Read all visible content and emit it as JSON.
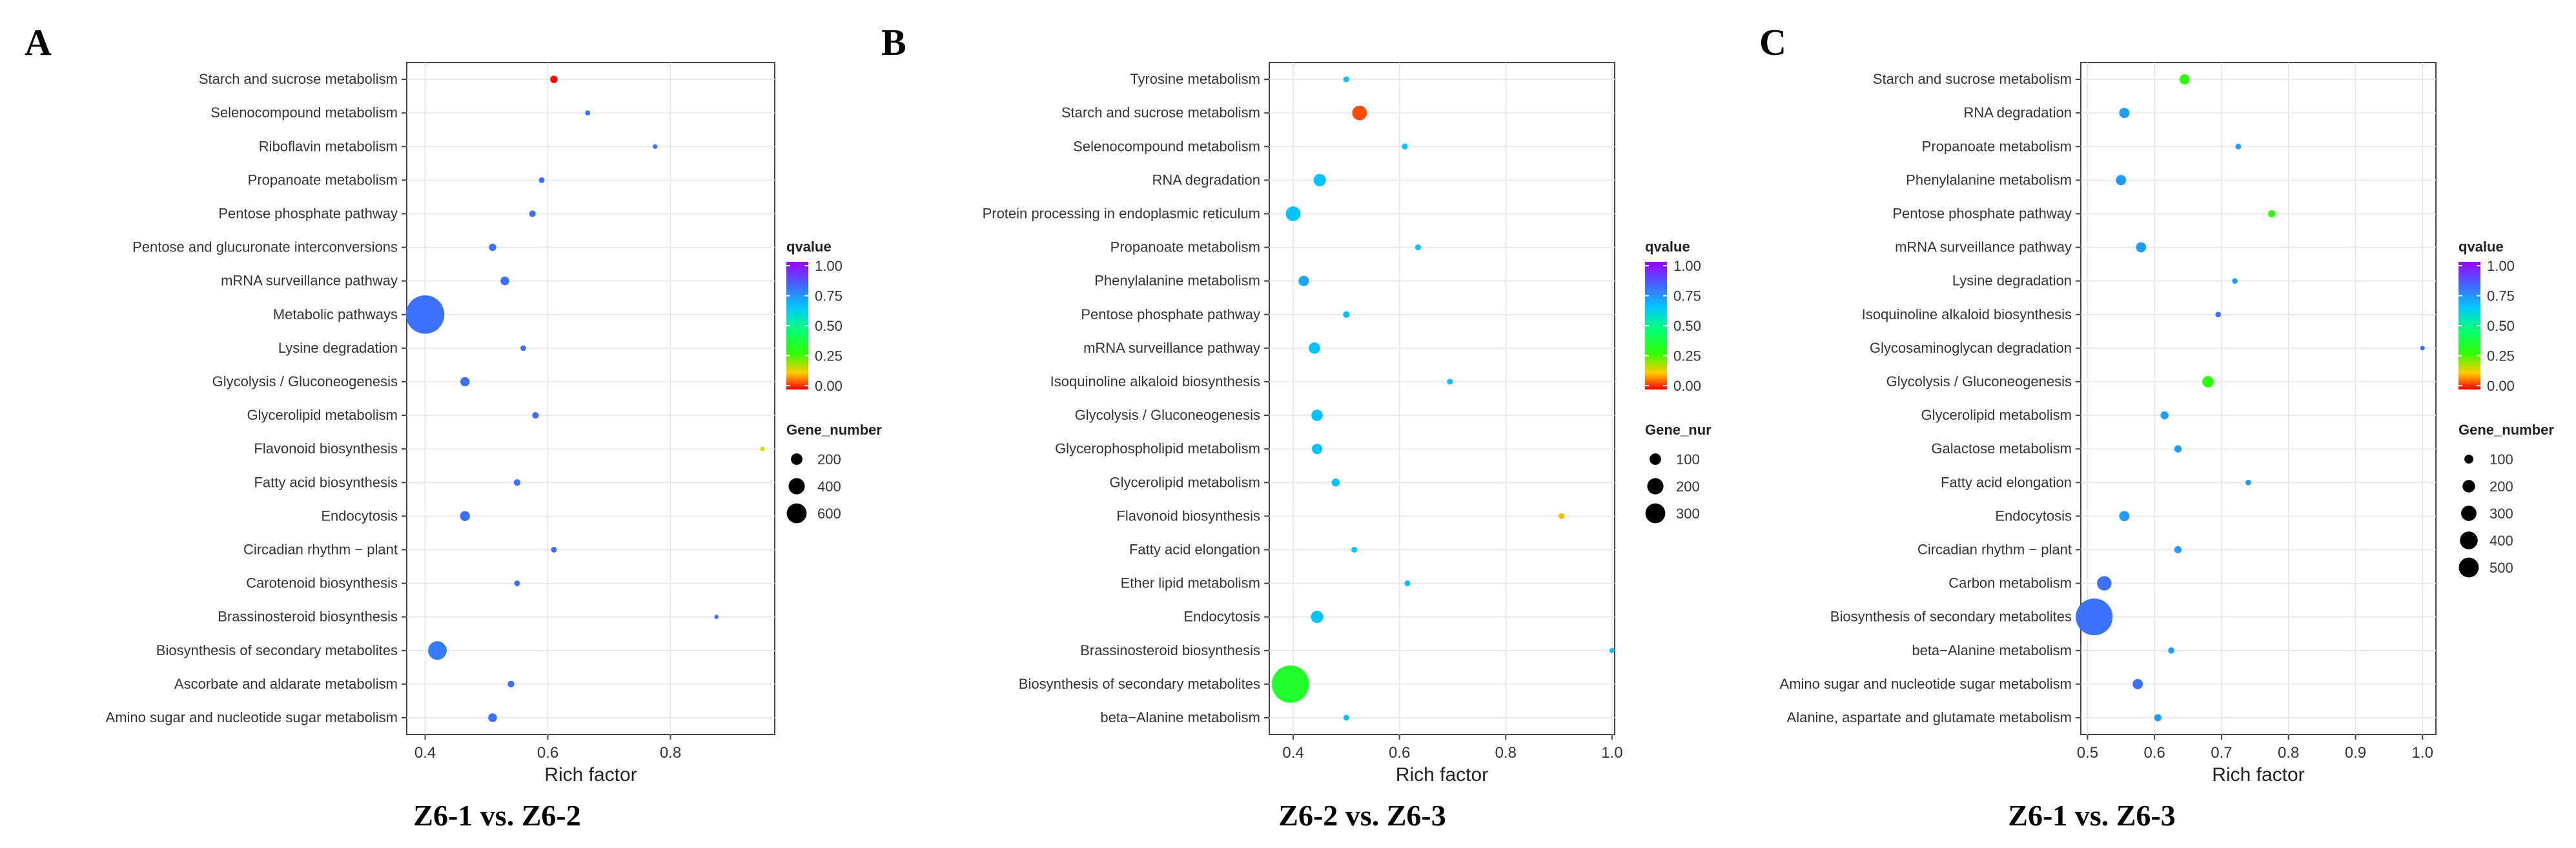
{
  "chart_data": [
    {
      "type": "scatter",
      "panel": "A",
      "caption": "Z6-1 vs. Z6-2",
      "xlabel": "Rich factor",
      "xlim": [
        0.37,
        0.97
      ],
      "xticks": [
        0.4,
        0.6,
        0.8
      ],
      "legend_title_color": "qvalue",
      "legend_title_size": "Gene_number",
      "color_ticks": [
        "1.00",
        "0.75",
        "0.50",
        "0.25",
        "0.00"
      ],
      "size_entries": [
        200,
        400,
        600
      ],
      "size_max": 600,
      "grid": true,
      "legend_position": "right",
      "points": [
        {
          "pathway": "Starch and sucrose metabolism",
          "rich_factor": 0.61,
          "qvalue": 0.0,
          "gene_number": 25
        },
        {
          "pathway": "Selenocompound metabolism",
          "rich_factor": 0.665,
          "qvalue": 0.8,
          "gene_number": 12
        },
        {
          "pathway": "Riboflavin metabolism",
          "rich_factor": 0.775,
          "qvalue": 0.8,
          "gene_number": 10
        },
        {
          "pathway": "Propanoate metabolism",
          "rich_factor": 0.59,
          "qvalue": 0.8,
          "gene_number": 15
        },
        {
          "pathway": "Pentose phosphate pathway",
          "rich_factor": 0.575,
          "qvalue": 0.8,
          "gene_number": 20
        },
        {
          "pathway": "Pentose and glucuronate interconversions",
          "rich_factor": 0.51,
          "qvalue": 0.8,
          "gene_number": 25
        },
        {
          "pathway": "mRNA surveillance pathway",
          "rich_factor": 0.53,
          "qvalue": 0.8,
          "gene_number": 35
        },
        {
          "pathway": "Metabolic pathways",
          "rich_factor": 0.4,
          "qvalue": 0.8,
          "gene_number": 680
        },
        {
          "pathway": "Lysine degradation",
          "rich_factor": 0.56,
          "qvalue": 0.8,
          "gene_number": 15
        },
        {
          "pathway": "Glycolysis / Gluconeogenesis",
          "rich_factor": 0.465,
          "qvalue": 0.8,
          "gene_number": 40
        },
        {
          "pathway": "Glycerolipid metabolism",
          "rich_factor": 0.58,
          "qvalue": 0.8,
          "gene_number": 20
        },
        {
          "pathway": "Flavonoid biosynthesis",
          "rich_factor": 0.95,
          "qvalue": 0.15,
          "gene_number": 10
        },
        {
          "pathway": "Fatty acid biosynthesis",
          "rich_factor": 0.55,
          "qvalue": 0.8,
          "gene_number": 20
        },
        {
          "pathway": "Endocytosis",
          "rich_factor": 0.465,
          "qvalue": 0.8,
          "gene_number": 45
        },
        {
          "pathway": "Circadian rhythm − plant",
          "rich_factor": 0.61,
          "qvalue": 0.8,
          "gene_number": 15
        },
        {
          "pathway": "Carotenoid biosynthesis",
          "rich_factor": 0.55,
          "qvalue": 0.8,
          "gene_number": 15
        },
        {
          "pathway": "Brassinosteroid biosynthesis",
          "rich_factor": 0.875,
          "qvalue": 0.8,
          "gene_number": 8
        },
        {
          "pathway": "Biosynthesis of secondary metabolites",
          "rich_factor": 0.42,
          "qvalue": 0.78,
          "gene_number": 160
        },
        {
          "pathway": "Ascorbate and aldarate metabolism",
          "rich_factor": 0.54,
          "qvalue": 0.8,
          "gene_number": 20
        },
        {
          "pathway": "Amino sugar and nucleotide sugar metabolism",
          "rich_factor": 0.51,
          "qvalue": 0.8,
          "gene_number": 35
        }
      ]
    },
    {
      "type": "scatter",
      "panel": "B",
      "caption": "Z6-2 vs. Z6-3",
      "xlabel": "Rich factor",
      "xlim": [
        0.355,
        1.005
      ],
      "xticks": [
        0.4,
        0.6,
        0.8,
        1.0
      ],
      "legend_title_color": "qvalue",
      "legend_title_size": "Gene_nur",
      "color_ticks": [
        "1.00",
        "0.75",
        "0.50",
        "0.25",
        "0.00"
      ],
      "size_entries": [
        100,
        200,
        300
      ],
      "size_max": 300,
      "grid": true,
      "legend_position": "right",
      "points": [
        {
          "pathway": "Tyrosine metabolism",
          "rich_factor": 0.5,
          "qvalue": 0.65,
          "gene_number": 8
        },
        {
          "pathway": "Starch and sucrose metabolism",
          "rich_factor": 0.525,
          "qvalue": 0.05,
          "gene_number": 50
        },
        {
          "pathway": "Selenocompound metabolism",
          "rich_factor": 0.61,
          "qvalue": 0.65,
          "gene_number": 8
        },
        {
          "pathway": "RNA degradation",
          "rich_factor": 0.45,
          "qvalue": 0.65,
          "gene_number": 35
        },
        {
          "pathway": "Protein processing in endoplasmic reticulum",
          "rich_factor": 0.4,
          "qvalue": 0.65,
          "gene_number": 50
        },
        {
          "pathway": "Propanoate metabolism",
          "rich_factor": 0.635,
          "qvalue": 0.65,
          "gene_number": 8
        },
        {
          "pathway": "Phenylalanine metabolism",
          "rich_factor": 0.42,
          "qvalue": 0.7,
          "gene_number": 25
        },
        {
          "pathway": "Pentose phosphate pathway",
          "rich_factor": 0.5,
          "qvalue": 0.65,
          "gene_number": 10
        },
        {
          "pathway": "mRNA surveillance pathway",
          "rich_factor": 0.44,
          "qvalue": 0.65,
          "gene_number": 30
        },
        {
          "pathway": "Isoquinoline alkaloid biosynthesis",
          "rich_factor": 0.695,
          "qvalue": 0.65,
          "gene_number": 8
        },
        {
          "pathway": "Glycolysis / Gluconeogenesis",
          "rich_factor": 0.445,
          "qvalue": 0.65,
          "gene_number": 30
        },
        {
          "pathway": "Glycerophospholipid metabolism",
          "rich_factor": 0.445,
          "qvalue": 0.65,
          "gene_number": 25
        },
        {
          "pathway": "Glycerolipid metabolism",
          "rich_factor": 0.48,
          "qvalue": 0.65,
          "gene_number": 15
        },
        {
          "pathway": "Flavonoid biosynthesis",
          "rich_factor": 0.905,
          "qvalue": 0.12,
          "gene_number": 8
        },
        {
          "pathway": "Fatty acid elongation",
          "rich_factor": 0.515,
          "qvalue": 0.65,
          "gene_number": 8
        },
        {
          "pathway": "Ether lipid metabolism",
          "rich_factor": 0.615,
          "qvalue": 0.65,
          "gene_number": 8
        },
        {
          "pathway": "Endocytosis",
          "rich_factor": 0.445,
          "qvalue": 0.65,
          "gene_number": 35
        },
        {
          "pathway": "Brassinosteroid biosynthesis",
          "rich_factor": 1.0,
          "qvalue": 0.65,
          "gene_number": 6
        },
        {
          "pathway": "Biosynthesis of secondary metabolites",
          "rich_factor": 0.395,
          "qvalue": 0.35,
          "gene_number": 320
        },
        {
          "pathway": "beta−Alanine metabolism",
          "rich_factor": 0.5,
          "qvalue": 0.65,
          "gene_number": 8
        }
      ]
    },
    {
      "type": "scatter",
      "panel": "C",
      "caption": "Z6-1 vs. Z6-3",
      "xlabel": "Rich factor",
      "xlim": [
        0.49,
        1.02
      ],
      "xticks": [
        0.5,
        0.6,
        0.7,
        0.8,
        0.9,
        1.0
      ],
      "legend_title_color": "qvalue",
      "legend_title_size": "Gene_number",
      "color_ticks": [
        "1.00",
        "0.75",
        "0.50",
        "0.25",
        "0.00"
      ],
      "size_entries": [
        100,
        200,
        300,
        400,
        500
      ],
      "size_max": 500,
      "grid": true,
      "legend_position": "right",
      "points": [
        {
          "pathway": "Starch and sucrose metabolism",
          "rich_factor": 0.645,
          "qvalue": 0.3,
          "gene_number": 40
        },
        {
          "pathway": "RNA degradation",
          "rich_factor": 0.555,
          "qvalue": 0.72,
          "gene_number": 40
        },
        {
          "pathway": "Propanoate metabolism",
          "rich_factor": 0.725,
          "qvalue": 0.72,
          "gene_number": 12
        },
        {
          "pathway": "Phenylalanine metabolism",
          "rich_factor": 0.55,
          "qvalue": 0.72,
          "gene_number": 40
        },
        {
          "pathway": "Pentose phosphate pathway",
          "rich_factor": 0.775,
          "qvalue": 0.3,
          "gene_number": 20
        },
        {
          "pathway": "mRNA surveillance pathway",
          "rich_factor": 0.58,
          "qvalue": 0.72,
          "gene_number": 40
        },
        {
          "pathway": "Lysine degradation",
          "rich_factor": 0.72,
          "qvalue": 0.72,
          "gene_number": 12
        },
        {
          "pathway": "Isoquinoline alkaloid biosynthesis",
          "rich_factor": 0.695,
          "qvalue": 0.8,
          "gene_number": 12
        },
        {
          "pathway": "Glycosaminoglycan degradation",
          "rich_factor": 1.0,
          "qvalue": 0.8,
          "gene_number": 8
        },
        {
          "pathway": "Glycolysis / Gluconeogenesis",
          "rich_factor": 0.68,
          "qvalue": 0.3,
          "gene_number": 50
        },
        {
          "pathway": "Glycerolipid metabolism",
          "rich_factor": 0.615,
          "qvalue": 0.72,
          "gene_number": 25
        },
        {
          "pathway": "Galactose metabolism",
          "rich_factor": 0.635,
          "qvalue": 0.72,
          "gene_number": 20
        },
        {
          "pathway": "Fatty acid elongation",
          "rich_factor": 0.74,
          "qvalue": 0.72,
          "gene_number": 12
        },
        {
          "pathway": "Endocytosis",
          "rich_factor": 0.555,
          "qvalue": 0.72,
          "gene_number": 40
        },
        {
          "pathway": "Circadian rhythm − plant",
          "rich_factor": 0.635,
          "qvalue": 0.72,
          "gene_number": 20
        },
        {
          "pathway": "Carbon metabolism",
          "rich_factor": 0.525,
          "qvalue": 0.8,
          "gene_number": 80
        },
        {
          "pathway": "Biosynthesis of secondary metabolites",
          "rich_factor": 0.51,
          "qvalue": 0.8,
          "gene_number": 520
        },
        {
          "pathway": "beta−Alanine metabolism",
          "rich_factor": 0.625,
          "qvalue": 0.72,
          "gene_number": 15
        },
        {
          "pathway": "Amino sugar and nucleotide sugar metabolism",
          "rich_factor": 0.575,
          "qvalue": 0.8,
          "gene_number": 40
        },
        {
          "pathway": "Alanine, aspartate and glutamate metabolism",
          "rich_factor": 0.605,
          "qvalue": 0.72,
          "gene_number": 20
        }
      ]
    }
  ]
}
